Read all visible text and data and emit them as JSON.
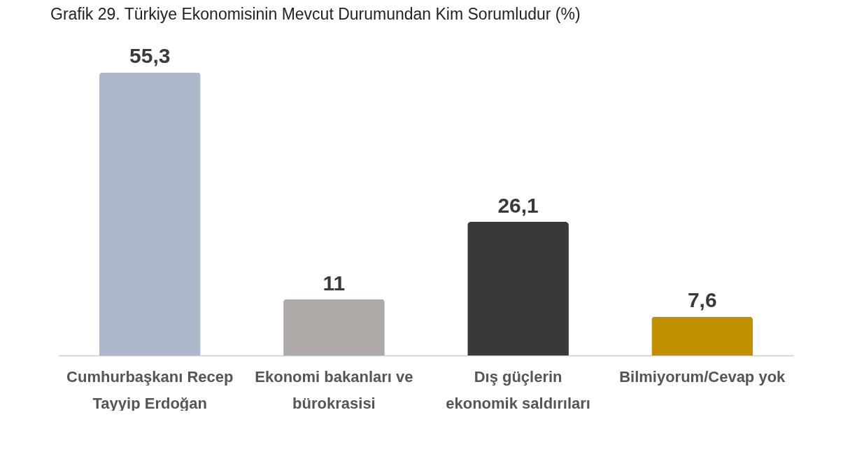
{
  "chart_data": {
    "type": "bar",
    "title": "Grafik 29. Türkiye Ekonomisinin Mevcut Durumundan Kim Sorumludur (%)",
    "categories": [
      "Cumhurbaşkanı Recep Tayyip Erdoğan",
      "Ekonomi bakanları ve bürokrasisi",
      "Dış güçlerin ekonomik saldırıları",
      "Bilmiyorum/Cevap yok"
    ],
    "values": [
      55.3,
      11,
      26.1,
      7.6
    ],
    "colors": [
      "#adb8cb",
      "#afaaa8",
      "#3a3939",
      "#c09000"
    ],
    "value_labels": [
      "55,3",
      "11",
      "26,1",
      "7,6"
    ],
    "grid": false
  }
}
